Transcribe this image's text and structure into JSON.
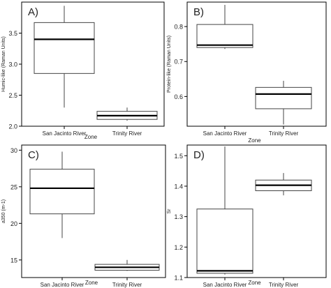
{
  "chart_data": [
    {
      "type": "box",
      "panel_label": "A)",
      "title": "",
      "xlabel": "Zone",
      "ylabel": "Humic-like (Raman Units)",
      "categories": [
        "San Jacinto River",
        "Trinity River"
      ],
      "ylim": [
        2.0,
        4.0
      ],
      "yticks": [
        "2.0",
        "2.5",
        "3.0",
        "3.5"
      ],
      "yticks_values": [
        2.0,
        2.5,
        3.0,
        3.5
      ],
      "boxes": [
        {
          "min": 2.3,
          "q1": 2.85,
          "median": 3.4,
          "q3": 3.67,
          "max": 3.94
        },
        {
          "min": 2.09,
          "q1": 2.11,
          "median": 2.17,
          "q3": 2.24,
          "max": 2.3
        }
      ]
    },
    {
      "type": "box",
      "panel_label": "B)",
      "title": "",
      "xlabel": "Zone",
      "ylabel": "Protein-like (Raman Units)",
      "categories": [
        "San Jacinto River",
        "Trinity River"
      ],
      "ylim": [
        0.515,
        0.87
      ],
      "yticks": [
        "0.6",
        "0.7",
        "0.8"
      ],
      "yticks_values": [
        0.6,
        0.7,
        0.8
      ],
      "boxes": [
        {
          "min": 0.736,
          "q1": 0.74,
          "median": 0.747,
          "q3": 0.806,
          "max": 0.862
        },
        {
          "min": 0.52,
          "q1": 0.565,
          "median": 0.607,
          "q3": 0.626,
          "max": 0.645
        }
      ]
    },
    {
      "type": "box",
      "panel_label": "C)",
      "title": "",
      "xlabel": "Zone",
      "ylabel": "a350 (m-1)",
      "categories": [
        "San Jacinto River",
        "Trinity River"
      ],
      "ylim": [
        12.6,
        30.7
      ],
      "yticks": [
        "15",
        "20",
        "25",
        "30"
      ],
      "yticks_values": [
        15,
        20,
        25,
        30
      ],
      "boxes": [
        {
          "min": 18.0,
          "q1": 21.3,
          "median": 24.8,
          "q3": 27.4,
          "max": 29.8
        },
        {
          "min": 13.5,
          "q1": 13.6,
          "median": 14.0,
          "q3": 14.4,
          "max": 15.0
        }
      ]
    },
    {
      "type": "box",
      "panel_label": "D)",
      "title": "",
      "xlabel": "Zone",
      "ylabel": "Sr",
      "categories": [
        "San Jacinto River",
        "Trinity River"
      ],
      "ylim": [
        1.1,
        1.535
      ],
      "yticks": [
        "1.1",
        "1.2",
        "1.3",
        "1.4",
        "1.5"
      ],
      "yticks_values": [
        1.1,
        1.2,
        1.3,
        1.4,
        1.5
      ],
      "boxes": [
        {
          "min": 1.11,
          "q1": 1.114,
          "median": 1.122,
          "q3": 1.325,
          "max": 1.53
        },
        {
          "min": 1.37,
          "q1": 1.385,
          "median": 1.403,
          "q3": 1.42,
          "max": 1.443
        }
      ]
    }
  ]
}
